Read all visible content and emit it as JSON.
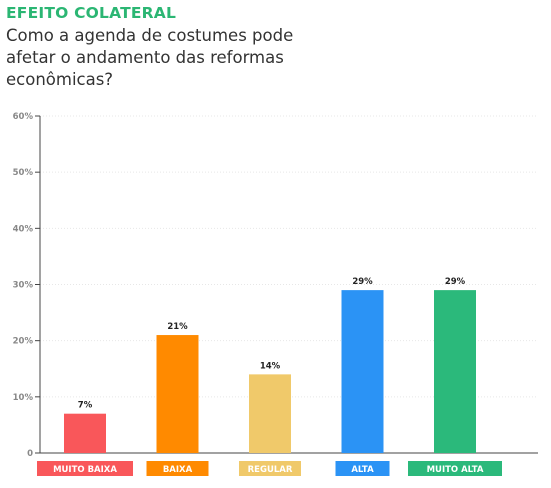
{
  "header": {
    "kicker": "EFEITO COLATERAL",
    "headline": "Como a agenda de costumes pode afetar o andamento das reformas econômicas?"
  },
  "chart_data": {
    "type": "bar",
    "title": "EFEITO COLATERAL",
    "subtitle": "Como a agenda de costumes pode afetar o andamento das reformas econômicas?",
    "categories": [
      "MUITO BAIXA",
      "BAIXA",
      "REGULAR",
      "ALTA",
      "MUITO ALTA"
    ],
    "values": [
      7,
      21,
      14,
      29,
      29
    ],
    "data_labels": [
      "7%",
      "21%",
      "14%",
      "29%",
      "29%"
    ],
    "colors": [
      "#f9575a",
      "#ff8a00",
      "#f0c96a",
      "#2b93f5",
      "#2bb97b"
    ],
    "ylim": [
      0,
      60
    ],
    "yticks": [
      0,
      10,
      20,
      30,
      40,
      50,
      60
    ],
    "ytick_labels": [
      "0",
      "10%",
      "20%",
      "30%",
      "40%",
      "50%",
      "60%"
    ],
    "grid": true
  }
}
